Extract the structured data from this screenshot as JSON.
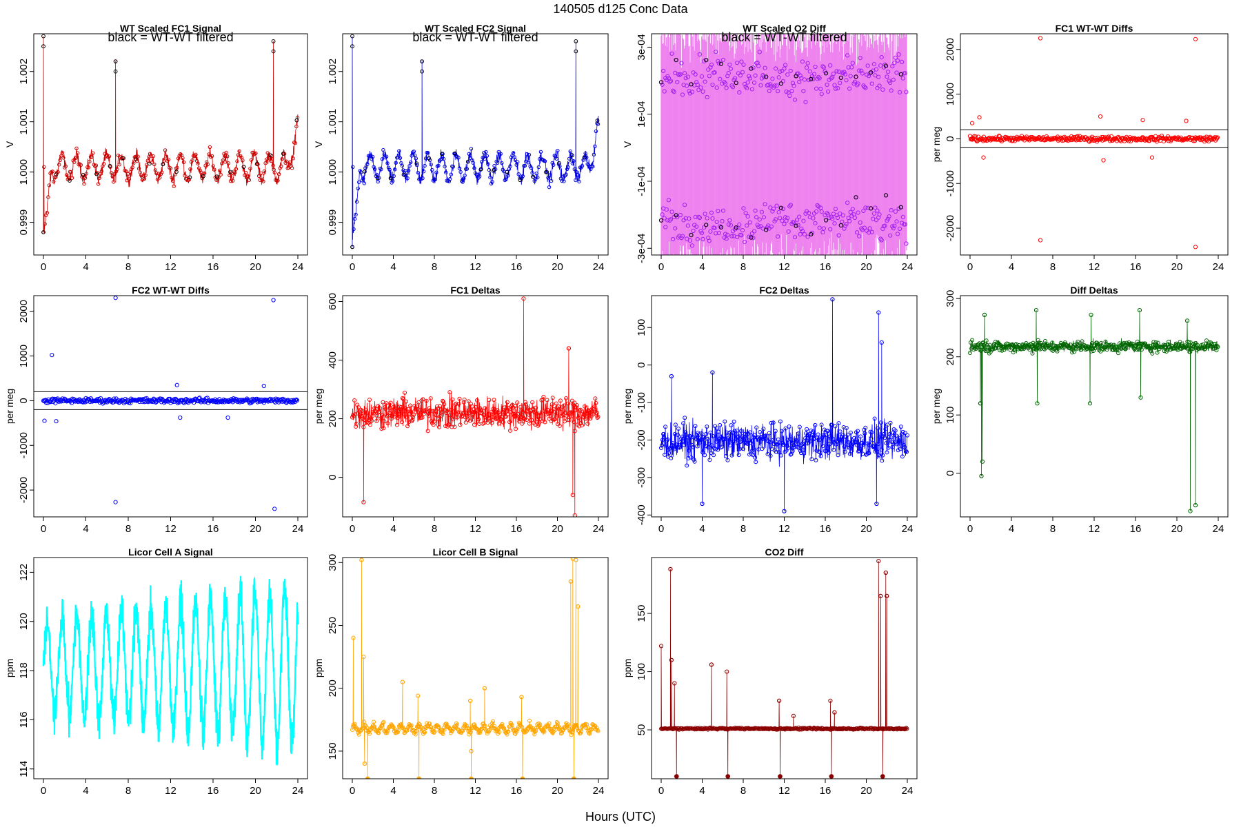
{
  "figure": {
    "title": "140505   d125   Conc Data",
    "xlabel": "Hours (UTC)"
  },
  "colors": {
    "red": "#ff0000",
    "darkred": "#8b0000",
    "blue": "#0000ff",
    "violet": "#ee82ee",
    "purple": "#a020f0",
    "green": "#006400",
    "cyan": "#00ffff",
    "orange": "#ffa500",
    "black": "#000000"
  },
  "chart_data": [
    {
      "id": "fc1-signal",
      "type": "line",
      "title": "WT Scaled FC1 Signal",
      "annotation": "black = WT-WT filtered",
      "ylabel": "V",
      "xlim": [
        0,
        24
      ],
      "ylim": [
        0.99835,
        1.00275
      ],
      "xticks": [
        0,
        4,
        8,
        12,
        16,
        20,
        24
      ],
      "yticks": [
        0.999,
        1.0,
        1.001,
        1.002
      ],
      "ytick_labels": [
        "0.999",
        "1.000",
        "1.001",
        "1.002"
      ],
      "series": [
        {
          "name": "FC1 signal",
          "color": "#cc0000",
          "baseline": 1.0001,
          "noise": 0.0003,
          "wave_amp": 0.0003,
          "spikes": [
            [
              0.0,
              1.0027
            ],
            [
              6.8,
              1.0022
            ],
            [
              21.7,
              1.0026
            ]
          ],
          "start_dip": 0.9987,
          "end_rise": 1.0009
        }
      ]
    },
    {
      "id": "fc2-signal",
      "type": "line",
      "title": "WT Scaled FC2 Signal",
      "annotation": "black = WT-WT filtered",
      "ylabel": "V",
      "xlim": [
        0,
        24
      ],
      "ylim": [
        0.99835,
        1.00275
      ],
      "xticks": [
        0,
        4,
        8,
        12,
        16,
        20,
        24
      ],
      "yticks": [
        0.999,
        1.0,
        1.001,
        1.002
      ],
      "ytick_labels": [
        "0.999",
        "1.000",
        "1.001",
        "1.002"
      ],
      "series": [
        {
          "name": "FC2 signal",
          "color": "#0000dd",
          "baseline": 1.0001,
          "noise": 0.0003,
          "wave_amp": 0.0003,
          "spikes": [
            [
              0.0,
              1.0027
            ],
            [
              6.8,
              1.0022
            ],
            [
              21.8,
              1.0026
            ]
          ],
          "start_dip": 0.9986,
          "end_rise": 1.0009
        }
      ]
    },
    {
      "id": "o2-diff",
      "type": "line",
      "title": "WT Scaled O2 Diff",
      "annotation": "black = WT-WT filtered",
      "ylabel": "V",
      "xlim": [
        0,
        24
      ],
      "ylim": [
        -0.00032,
        0.00034
      ],
      "xticks": [
        0,
        4,
        8,
        12,
        16,
        20,
        24
      ],
      "yticks": [
        -0.0003,
        -0.0001,
        0.0001,
        0.0003
      ],
      "ytick_labels": [
        "-3e-04",
        "-1e-04",
        "1e-04",
        "3e-04"
      ],
      "series": [
        {
          "name": "O2 diff",
          "color": "#ee82ee",
          "point_color": "#a020f0",
          "band_hi": 0.00021,
          "band_lo": -0.00022
        }
      ]
    },
    {
      "id": "fc1-wtwt",
      "type": "scatter",
      "title": "FC1 WT-WT Diffs",
      "ylabel": "per meg",
      "xlim": [
        0,
        24
      ],
      "ylim": [
        -2600,
        2350
      ],
      "xticks": [
        0,
        4,
        8,
        12,
        16,
        20,
        24
      ],
      "yticks": [
        -2000,
        -1000,
        0,
        1000,
        2000
      ],
      "ytick_labels": [
        "-2000",
        "-1000",
        "0",
        "1000",
        "2000"
      ],
      "hlines": [
        200,
        -200
      ],
      "series": [
        {
          "name": "FC1 WT-WT",
          "color": "#ff0000",
          "outliers": [
            [
              6.8,
              2250
            ],
            [
              6.8,
              -2270
            ],
            [
              21.8,
              2230
            ],
            [
              21.8,
              -2420
            ],
            [
              12.6,
              500
            ],
            [
              12.9,
              -480
            ],
            [
              16.7,
              420
            ],
            [
              20.9,
              400
            ],
            [
              0.9,
              480
            ],
            [
              1.3,
              -420
            ],
            [
              0.2,
              350
            ],
            [
              17.6,
              -420
            ]
          ]
        }
      ]
    },
    {
      "id": "fc2-wtwt",
      "type": "scatter",
      "title": "FC2 WT-WT Diffs",
      "ylabel": "per meg",
      "xlim": [
        0,
        24
      ],
      "ylim": [
        -2600,
        2350
      ],
      "xticks": [
        0,
        4,
        8,
        12,
        16,
        20,
        24
      ],
      "yticks": [
        -2000,
        -1000,
        0,
        1000,
        2000
      ],
      "ytick_labels": [
        "-2000",
        "-1000",
        "0",
        "1000",
        "2000"
      ],
      "hlines": [
        200,
        -200
      ],
      "series": [
        {
          "name": "FC2 WT-WT",
          "color": "#0000ff",
          "outliers": [
            [
              6.8,
              2300
            ],
            [
              6.8,
              -2270
            ],
            [
              21.7,
              2250
            ],
            [
              21.8,
              -2420
            ],
            [
              0.8,
              1020
            ],
            [
              0.1,
              -450
            ],
            [
              1.2,
              -460
            ],
            [
              12.6,
              350
            ],
            [
              12.9,
              -380
            ],
            [
              17.4,
              -380
            ],
            [
              20.8,
              330
            ]
          ]
        }
      ]
    },
    {
      "id": "fc1-deltas",
      "type": "line",
      "title": "FC1 Deltas",
      "ylabel": "per meg",
      "xlim": [
        0,
        24
      ],
      "ylim": [
        -135,
        620
      ],
      "xticks": [
        0,
        4,
        8,
        12,
        16,
        20,
        24
      ],
      "yticks": [
        0,
        200,
        400,
        600
      ],
      "ytick_labels": [
        "0",
        "200",
        "400",
        "600"
      ],
      "series": [
        {
          "name": "FC1 delta",
          "color": "#ff0000",
          "baseline": 220,
          "noise": 45,
          "spikes": [
            [
              16.7,
              610
            ],
            [
              21.1,
              440
            ],
            [
              21.7,
              -130
            ],
            [
              1.1,
              -85
            ],
            [
              21.5,
              -60
            ]
          ]
        }
      ]
    },
    {
      "id": "fc2-deltas",
      "type": "line",
      "title": "FC2 Deltas",
      "ylabel": "per meg",
      "xlim": [
        0,
        24
      ],
      "ylim": [
        -405,
        185
      ],
      "xticks": [
        0,
        4,
        8,
        12,
        16,
        20,
        24
      ],
      "yticks": [
        -400,
        -300,
        -200,
        -100,
        0,
        100
      ],
      "ytick_labels": [
        "-400",
        "-300",
        "-200",
        "-100",
        "0",
        "100"
      ],
      "series": [
        {
          "name": "FC2 delta",
          "color": "#0000ff",
          "baseline": -205,
          "noise": 40,
          "spikes": [
            [
              16.7,
              175
            ],
            [
              21.2,
              140
            ],
            [
              21.5,
              60
            ],
            [
              12.0,
              -390
            ],
            [
              4.0,
              -370
            ],
            [
              21.0,
              -370
            ],
            [
              1.0,
              -30
            ],
            [
              5.0,
              -20
            ]
          ]
        }
      ]
    },
    {
      "id": "diff-deltas",
      "type": "line",
      "title": "Diff Deltas",
      "ylabel": "per meg",
      "xlim": [
        0,
        24
      ],
      "ylim": [
        -75,
        305
      ],
      "xticks": [
        0,
        4,
        8,
        12,
        16,
        20,
        24
      ],
      "yticks": [
        0,
        100,
        200,
        300
      ],
      "ytick_labels": [
        "0",
        "100",
        "200",
        "300"
      ],
      "series": [
        {
          "name": "Diff delta",
          "color": "#006400",
          "baseline": 218,
          "noise": 8,
          "dips": [
            [
              1.0,
              120
            ],
            [
              1.2,
              20
            ],
            [
              1.1,
              -5
            ],
            [
              6.5,
              120
            ],
            [
              11.6,
              120
            ],
            [
              16.5,
              130
            ],
            [
              21.3,
              -65
            ],
            [
              21.8,
              -55
            ]
          ],
          "peaks": [
            [
              1.4,
              272
            ],
            [
              6.4,
              280
            ],
            [
              11.7,
              272
            ],
            [
              16.4,
              280
            ],
            [
              21.0,
              262
            ]
          ]
        }
      ]
    },
    {
      "id": "licor-a",
      "type": "line",
      "title": "Licor Cell A Signal",
      "ylabel": "ppm",
      "xlim": [
        0,
        24
      ],
      "ylim": [
        113.6,
        122.6
      ],
      "xticks": [
        0,
        4,
        8,
        12,
        16,
        20,
        24
      ],
      "yticks": [
        114,
        116,
        118,
        120,
        122
      ],
      "ytick_labels": [
        "114",
        "116",
        "118",
        "120",
        "122"
      ],
      "series": [
        {
          "name": "Cell A",
          "color": "#00ffff",
          "center": 118.2,
          "amp_start": 2.0,
          "amp_end": 3.8,
          "period_h": 1.4
        }
      ]
    },
    {
      "id": "licor-b",
      "type": "line",
      "title": "Licor Cell B Signal",
      "ylabel": "ppm",
      "xlim": [
        0,
        24
      ],
      "ylim": [
        128,
        304
      ],
      "xticks": [
        0,
        4,
        8,
        12,
        16,
        20,
        24
      ],
      "yticks": [
        150,
        200,
        250,
        300
      ],
      "ytick_labels": [
        "150",
        "200",
        "250",
        "300"
      ],
      "series": [
        {
          "name": "Cell B",
          "color": "#ffa500",
          "baseline": 168,
          "noise": 2,
          "spikes": [
            [
              0.1,
              240
            ],
            [
              0.9,
              302
            ],
            [
              1.1,
              225
            ],
            [
              4.9,
              205
            ],
            [
              6.4,
              194
            ],
            [
              11.5,
              190
            ],
            [
              16.5,
              193
            ],
            [
              21.3,
              285
            ],
            [
              21.5,
              303
            ],
            [
              21.8,
              302
            ],
            [
              22.0,
              265
            ],
            [
              12.9,
              200
            ],
            [
              1.2,
              140
            ],
            [
              11.6,
              150
            ]
          ],
          "floor": [
            [
              1.5,
              128
            ],
            [
              6.5,
              128
            ],
            [
              11.6,
              128
            ],
            [
              16.6,
              128
            ],
            [
              21.6,
              128
            ]
          ]
        }
      ]
    },
    {
      "id": "co2-diff",
      "type": "line",
      "title": "CO2 Diff",
      "ylabel": "ppm",
      "xlim": [
        0,
        24
      ],
      "ylim": [
        8,
        198
      ],
      "xticks": [
        0,
        4,
        8,
        12,
        16,
        20,
        24
      ],
      "yticks": [
        50,
        100,
        150
      ],
      "ytick_labels": [
        "50",
        "100",
        "150"
      ],
      "series": [
        {
          "name": "CO2 diff",
          "color": "#8b0000",
          "baseline": 51,
          "noise": 0.6,
          "spikes": [
            [
              0.0,
              122
            ],
            [
              0.9,
              188
            ],
            [
              1.0,
              110
            ],
            [
              1.3,
              90
            ],
            [
              4.9,
              106
            ],
            [
              6.4,
              100
            ],
            [
              11.5,
              75
            ],
            [
              12.9,
              62
            ],
            [
              16.5,
              75
            ],
            [
              16.9,
              65
            ],
            [
              21.2,
              195
            ],
            [
              21.4,
              165
            ],
            [
              21.9,
              185
            ],
            [
              22.0,
              165
            ]
          ],
          "floor": [
            [
              1.5,
              10
            ],
            [
              6.5,
              10
            ],
            [
              11.6,
              10
            ],
            [
              16.6,
              10
            ],
            [
              21.6,
              10
            ]
          ]
        }
      ]
    }
  ]
}
